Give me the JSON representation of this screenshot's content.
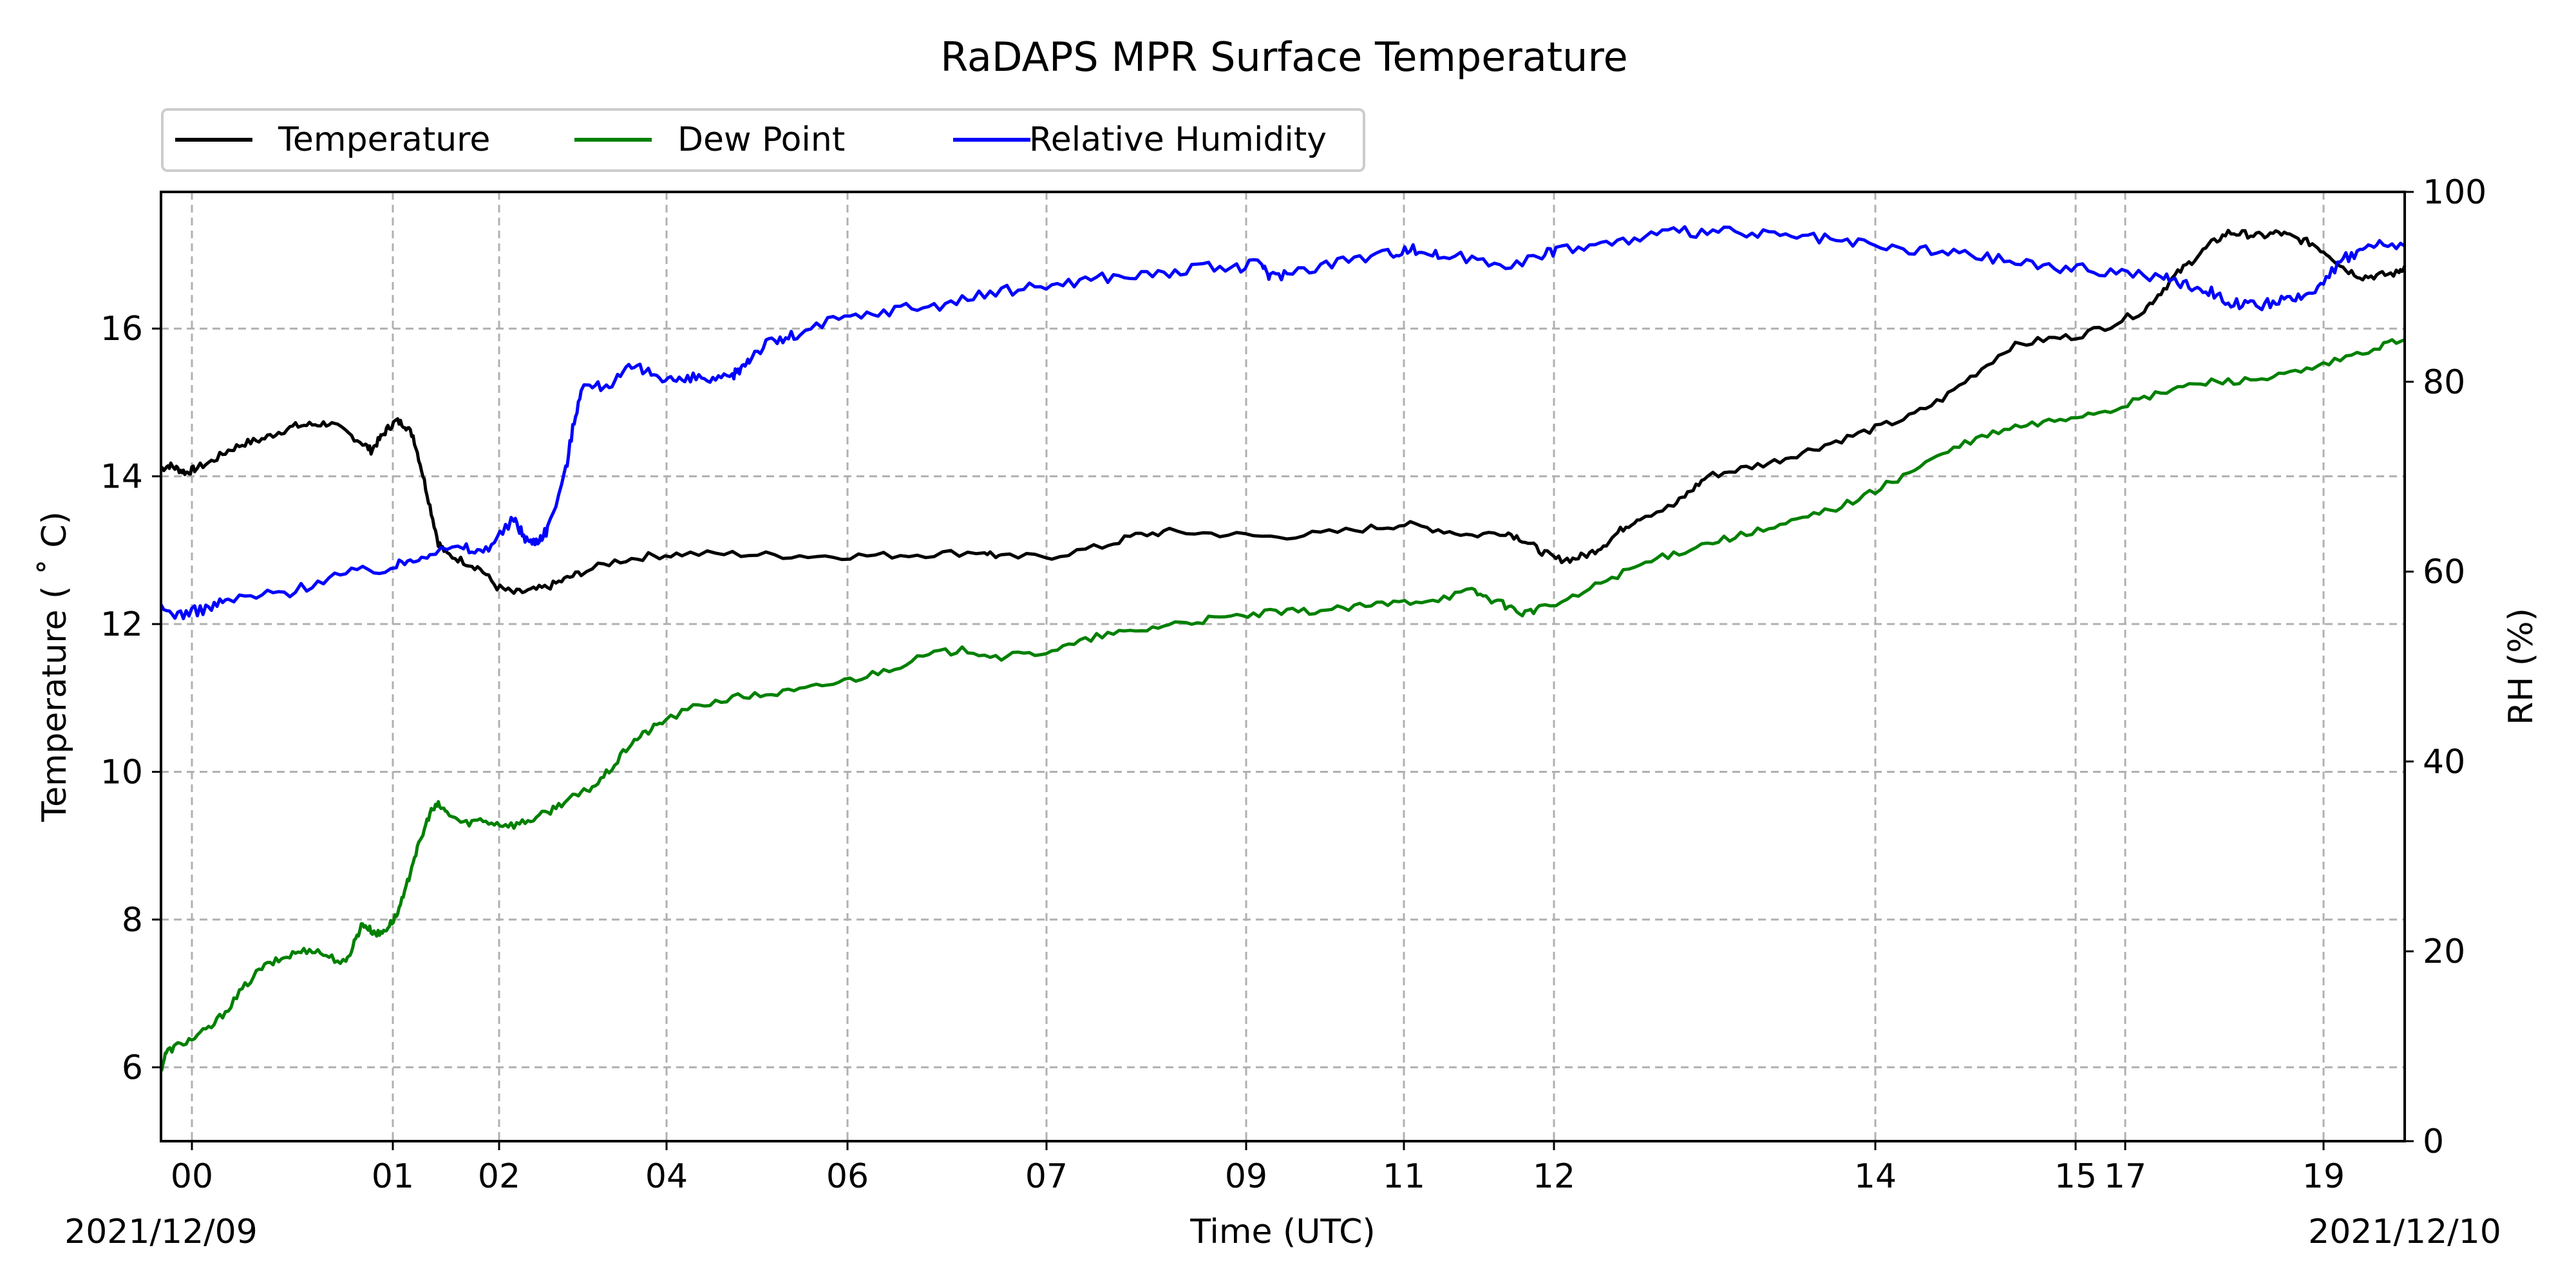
{
  "chart_data": {
    "type": "line",
    "title": "RaDAPS MPR Surface Temperature",
    "xlabel": "Time (UTC)",
    "ylabel_left": "Temperature ($^\\circ$C)",
    "ylabel_left_display": "Temperature ( ˚ C)",
    "ylabel_right": "RH (%)",
    "date_left": "2021/12/09",
    "date_right": "2021/12/10",
    "grid": true,
    "legend_position": "top-left, above plot",
    "x_ticks": [
      {
        "label": "00",
        "t": 0.014
      },
      {
        "label": "01",
        "t": 0.103
      },
      {
        "label": "02",
        "t": 0.15
      },
      {
        "label": "04",
        "t": 0.225
      },
      {
        "label": "06",
        "t": 0.306
      },
      {
        "label": "07",
        "t": 0.394
      },
      {
        "label": "09",
        "t": 0.482
      },
      {
        "label": "11",
        "t": 0.553
      },
      {
        "label": "12",
        "t": 0.62
      },
      {
        "label": "14",
        "t": 0.763
      },
      {
        "label": "15",
        "t": 0.852
      },
      {
        "label": "17",
        "t": 0.954
      },
      {
        "label": "19",
        "t": 0.963
      }
    ],
    "y_left_ticks": [
      6,
      8,
      10,
      12,
      14,
      16
    ],
    "y_left_range": [
      5,
      17.85
    ],
    "y_right_ticks": [
      0,
      20,
      40,
      60,
      80,
      100
    ],
    "y_right_range": [
      0,
      100
    ],
    "series": [
      {
        "name": "Temperature",
        "color": "#000000",
        "axis": "left",
        "points": [
          [
            0,
            14.1
          ],
          [
            0.005,
            14.15
          ],
          [
            0.01,
            14.1
          ],
          [
            0.015,
            14.05
          ],
          [
            0.02,
            14.1
          ],
          [
            0.03,
            14.2
          ],
          [
            0.04,
            14.35
          ],
          [
            0.05,
            14.45
          ],
          [
            0.06,
            14.5
          ],
          [
            0.07,
            14.6
          ],
          [
            0.08,
            14.68
          ],
          [
            0.09,
            14.7
          ],
          [
            0.1,
            14.72
          ],
          [
            0.11,
            14.6
          ],
          [
            0.12,
            14.45
          ],
          [
            0.125,
            14.35
          ],
          [
            0.13,
            14.5
          ],
          [
            0.135,
            14.65
          ],
          [
            0.14,
            14.75
          ],
          [
            0.145,
            14.7
          ],
          [
            0.15,
            14.55
          ],
          [
            0.155,
            14.1
          ],
          [
            0.16,
            13.6
          ],
          [
            0.165,
            13.1
          ],
          [
            0.17,
            12.95
          ],
          [
            0.18,
            12.85
          ],
          [
            0.19,
            12.75
          ],
          [
            0.2,
            12.5
          ],
          [
            0.21,
            12.42
          ],
          [
            0.22,
            12.45
          ],
          [
            0.23,
            12.5
          ],
          [
            0.24,
            12.6
          ],
          [
            0.25,
            12.7
          ],
          [
            0.27,
            12.85
          ],
          [
            0.29,
            12.92
          ],
          [
            0.31,
            12.95
          ],
          [
            0.34,
            12.95
          ],
          [
            0.37,
            12.93
          ],
          [
            0.4,
            12.92
          ],
          [
            0.43,
            12.93
          ],
          [
            0.46,
            12.95
          ],
          [
            0.49,
            12.98
          ],
          [
            0.5,
            12.9
          ],
          [
            0.53,
            12.92
          ],
          [
            0.56,
            13.05
          ],
          [
            0.58,
            13.2
          ],
          [
            0.6,
            13.25
          ],
          [
            0.63,
            13.22
          ],
          [
            0.66,
            13.18
          ],
          [
            0.69,
            13.22
          ],
          [
            0.72,
            13.3
          ],
          [
            0.74,
            13.35
          ],
          [
            0.76,
            13.28
          ],
          [
            0.78,
            13.2
          ],
          [
            0.8,
            13.25
          ],
          [
            0.81,
            13.15
          ],
          [
            0.82,
            13.0
          ],
          [
            0.83,
            12.88
          ],
          [
            0.84,
            12.88
          ],
          [
            0.85,
            12.95
          ],
          [
            0.86,
            13.1
          ],
          [
            0.87,
            13.3
          ],
          [
            0.88,
            13.45
          ],
          [
            0.9,
            13.6
          ],
          [
            0.91,
            13.8
          ],
          [
            0.92,
            14.0
          ],
          [
            0.94,
            14.1
          ],
          [
            0.96,
            14.2
          ],
          [
            0.98,
            14.35
          ],
          [
            1.0,
            14.5
          ],
          [
            1.02,
            14.65
          ],
          [
            1.04,
            14.8
          ],
          [
            1.06,
            15.05
          ],
          [
            1.08,
            15.4
          ],
          [
            1.1,
            15.75
          ],
          [
            1.12,
            15.85
          ],
          [
            1.14,
            15.9
          ],
          [
            1.16,
            16.05
          ],
          [
            1.18,
            16.25
          ],
          [
            1.19,
            16.5
          ],
          [
            1.2,
            16.75
          ],
          [
            1.21,
            16.95
          ],
          [
            1.22,
            17.15
          ],
          [
            1.23,
            17.3
          ],
          [
            1.24,
            17.28
          ],
          [
            1.25,
            17.25
          ],
          [
            1.26,
            17.3
          ],
          [
            1.27,
            17.22
          ],
          [
            1.28,
            17.15
          ],
          [
            1.29,
            17.0
          ],
          [
            1.3,
            16.8
          ],
          [
            1.31,
            16.7
          ],
          [
            1.32,
            16.72
          ],
          [
            1.33,
            16.75
          ],
          [
            1.335,
            16.85
          ]
        ]
      },
      {
        "name": "Dew Point",
        "color": "#008000",
        "axis": "left",
        "points": [
          [
            0,
            5.97
          ],
          [
            0.003,
            6.2
          ],
          [
            0.01,
            6.3
          ],
          [
            0.02,
            6.4
          ],
          [
            0.03,
            6.55
          ],
          [
            0.04,
            6.8
          ],
          [
            0.05,
            7.1
          ],
          [
            0.06,
            7.35
          ],
          [
            0.07,
            7.45
          ],
          [
            0.08,
            7.55
          ],
          [
            0.09,
            7.6
          ],
          [
            0.1,
            7.5
          ],
          [
            0.11,
            7.4
          ],
          [
            0.115,
            7.7
          ],
          [
            0.12,
            7.95
          ],
          [
            0.125,
            7.85
          ],
          [
            0.13,
            7.8
          ],
          [
            0.135,
            7.9
          ],
          [
            0.14,
            8.05
          ],
          [
            0.145,
            8.35
          ],
          [
            0.15,
            8.8
          ],
          [
            0.155,
            9.1
          ],
          [
            0.16,
            9.45
          ],
          [
            0.165,
            9.55
          ],
          [
            0.17,
            9.45
          ],
          [
            0.18,
            9.3
          ],
          [
            0.19,
            9.35
          ],
          [
            0.2,
            9.3
          ],
          [
            0.21,
            9.28
          ],
          [
            0.22,
            9.35
          ],
          [
            0.23,
            9.45
          ],
          [
            0.24,
            9.6
          ],
          [
            0.25,
            9.7
          ],
          [
            0.26,
            9.85
          ],
          [
            0.27,
            10.1
          ],
          [
            0.28,
            10.4
          ],
          [
            0.29,
            10.55
          ],
          [
            0.3,
            10.7
          ],
          [
            0.32,
            10.9
          ],
          [
            0.34,
            11.0
          ],
          [
            0.36,
            11.05
          ],
          [
            0.38,
            11.1
          ],
          [
            0.4,
            11.2
          ],
          [
            0.42,
            11.3
          ],
          [
            0.44,
            11.45
          ],
          [
            0.46,
            11.6
          ],
          [
            0.48,
            11.65
          ],
          [
            0.5,
            11.55
          ],
          [
            0.52,
            11.6
          ],
          [
            0.54,
            11.7
          ],
          [
            0.56,
            11.85
          ],
          [
            0.58,
            11.9
          ],
          [
            0.6,
            12.0
          ],
          [
            0.62,
            12.05
          ],
          [
            0.64,
            12.1
          ],
          [
            0.66,
            12.15
          ],
          [
            0.68,
            12.17
          ],
          [
            0.7,
            12.2
          ],
          [
            0.72,
            12.25
          ],
          [
            0.74,
            12.3
          ],
          [
            0.76,
            12.35
          ],
          [
            0.78,
            12.45
          ],
          [
            0.79,
            12.35
          ],
          [
            0.8,
            12.25
          ],
          [
            0.81,
            12.15
          ],
          [
            0.82,
            12.2
          ],
          [
            0.84,
            12.35
          ],
          [
            0.86,
            12.6
          ],
          [
            0.88,
            12.8
          ],
          [
            0.9,
            12.95
          ],
          [
            0.92,
            13.1
          ],
          [
            0.94,
            13.2
          ],
          [
            0.96,
            13.3
          ],
          [
            0.98,
            13.45
          ],
          [
            1.0,
            13.6
          ],
          [
            1.02,
            13.8
          ],
          [
            1.04,
            14.05
          ],
          [
            1.06,
            14.3
          ],
          [
            1.08,
            14.5
          ],
          [
            1.1,
            14.65
          ],
          [
            1.12,
            14.72
          ],
          [
            1.14,
            14.82
          ],
          [
            1.16,
            14.9
          ],
          [
            1.18,
            15.05
          ],
          [
            1.2,
            15.2
          ],
          [
            1.22,
            15.28
          ],
          [
            1.24,
            15.3
          ],
          [
            1.26,
            15.35
          ],
          [
            1.28,
            15.45
          ],
          [
            1.3,
            15.6
          ],
          [
            1.32,
            15.75
          ],
          [
            1.335,
            15.85
          ]
        ]
      },
      {
        "name": "Relative Humidity",
        "color": "#0000ff",
        "axis": "right",
        "points": [
          [
            0,
            56.0
          ],
          [
            0.01,
            55.5
          ],
          [
            0.02,
            55.8
          ],
          [
            0.03,
            56.3
          ],
          [
            0.04,
            57.0
          ],
          [
            0.06,
            57.5
          ],
          [
            0.08,
            58.0
          ],
          [
            0.1,
            59.5
          ],
          [
            0.12,
            60.0
          ],
          [
            0.14,
            60.5
          ],
          [
            0.15,
            61.5
          ],
          [
            0.16,
            62.0
          ],
          [
            0.18,
            62.5
          ],
          [
            0.19,
            62.0
          ],
          [
            0.2,
            63.5
          ],
          [
            0.21,
            65.5
          ],
          [
            0.215,
            64.0
          ],
          [
            0.22,
            63.0
          ],
          [
            0.225,
            63.5
          ],
          [
            0.23,
            64.5
          ],
          [
            0.24,
            70.0
          ],
          [
            0.245,
            75.0
          ],
          [
            0.25,
            79.5
          ],
          [
            0.26,
            79.5
          ],
          [
            0.27,
            80.0
          ],
          [
            0.28,
            81.5
          ],
          [
            0.29,
            81.0
          ],
          [
            0.3,
            80.5
          ],
          [
            0.31,
            80.0
          ],
          [
            0.32,
            80.5
          ],
          [
            0.33,
            80.0
          ],
          [
            0.34,
            80.5
          ],
          [
            0.345,
            81.5
          ],
          [
            0.35,
            82.5
          ],
          [
            0.36,
            84.0
          ],
          [
            0.37,
            84.5
          ],
          [
            0.38,
            85.0
          ],
          [
            0.4,
            86.5
          ],
          [
            0.42,
            87.0
          ],
          [
            0.44,
            87.8
          ],
          [
            0.46,
            88.0
          ],
          [
            0.48,
            88.8
          ],
          [
            0.5,
            89.5
          ],
          [
            0.52,
            90.0
          ],
          [
            0.54,
            90.5
          ],
          [
            0.56,
            91.0
          ],
          [
            0.58,
            91.2
          ],
          [
            0.6,
            91.5
          ],
          [
            0.62,
            92.0
          ],
          [
            0.64,
            92.0
          ],
          [
            0.655,
            92.5
          ],
          [
            0.66,
            91.0
          ],
          [
            0.67,
            91.5
          ],
          [
            0.69,
            92.3
          ],
          [
            0.71,
            93.0
          ],
          [
            0.73,
            93.5
          ],
          [
            0.74,
            94.0
          ],
          [
            0.75,
            93.8
          ],
          [
            0.76,
            93.3
          ],
          [
            0.78,
            93.0
          ],
          [
            0.8,
            92.5
          ],
          [
            0.82,
            93.0
          ],
          [
            0.83,
            94.0
          ],
          [
            0.85,
            94.3
          ],
          [
            0.87,
            94.8
          ],
          [
            0.89,
            95.5
          ],
          [
            0.91,
            95.8
          ],
          [
            0.93,
            95.8
          ],
          [
            0.95,
            95.5
          ],
          [
            0.97,
            95.3
          ],
          [
            0.99,
            95.0
          ],
          [
            1.01,
            94.5
          ],
          [
            1.03,
            94.0
          ],
          [
            1.05,
            93.8
          ],
          [
            1.07,
            93.5
          ],
          [
            1.09,
            93.0
          ],
          [
            1.11,
            92.5
          ],
          [
            1.13,
            92.0
          ],
          [
            1.15,
            91.8
          ],
          [
            1.17,
            91.5
          ],
          [
            1.19,
            91.0
          ],
          [
            1.2,
            90.5
          ],
          [
            1.21,
            90.0
          ],
          [
            1.22,
            89.5
          ],
          [
            1.23,
            88.5
          ],
          [
            1.24,
            88.0
          ],
          [
            1.25,
            88.0
          ],
          [
            1.26,
            88.5
          ],
          [
            1.27,
            88.5
          ],
          [
            1.28,
            89.5
          ],
          [
            1.29,
            91.5
          ],
          [
            1.3,
            93.0
          ],
          [
            1.31,
            94.0
          ],
          [
            1.32,
            94.5
          ],
          [
            1.335,
            94.3
          ]
        ]
      }
    ]
  }
}
